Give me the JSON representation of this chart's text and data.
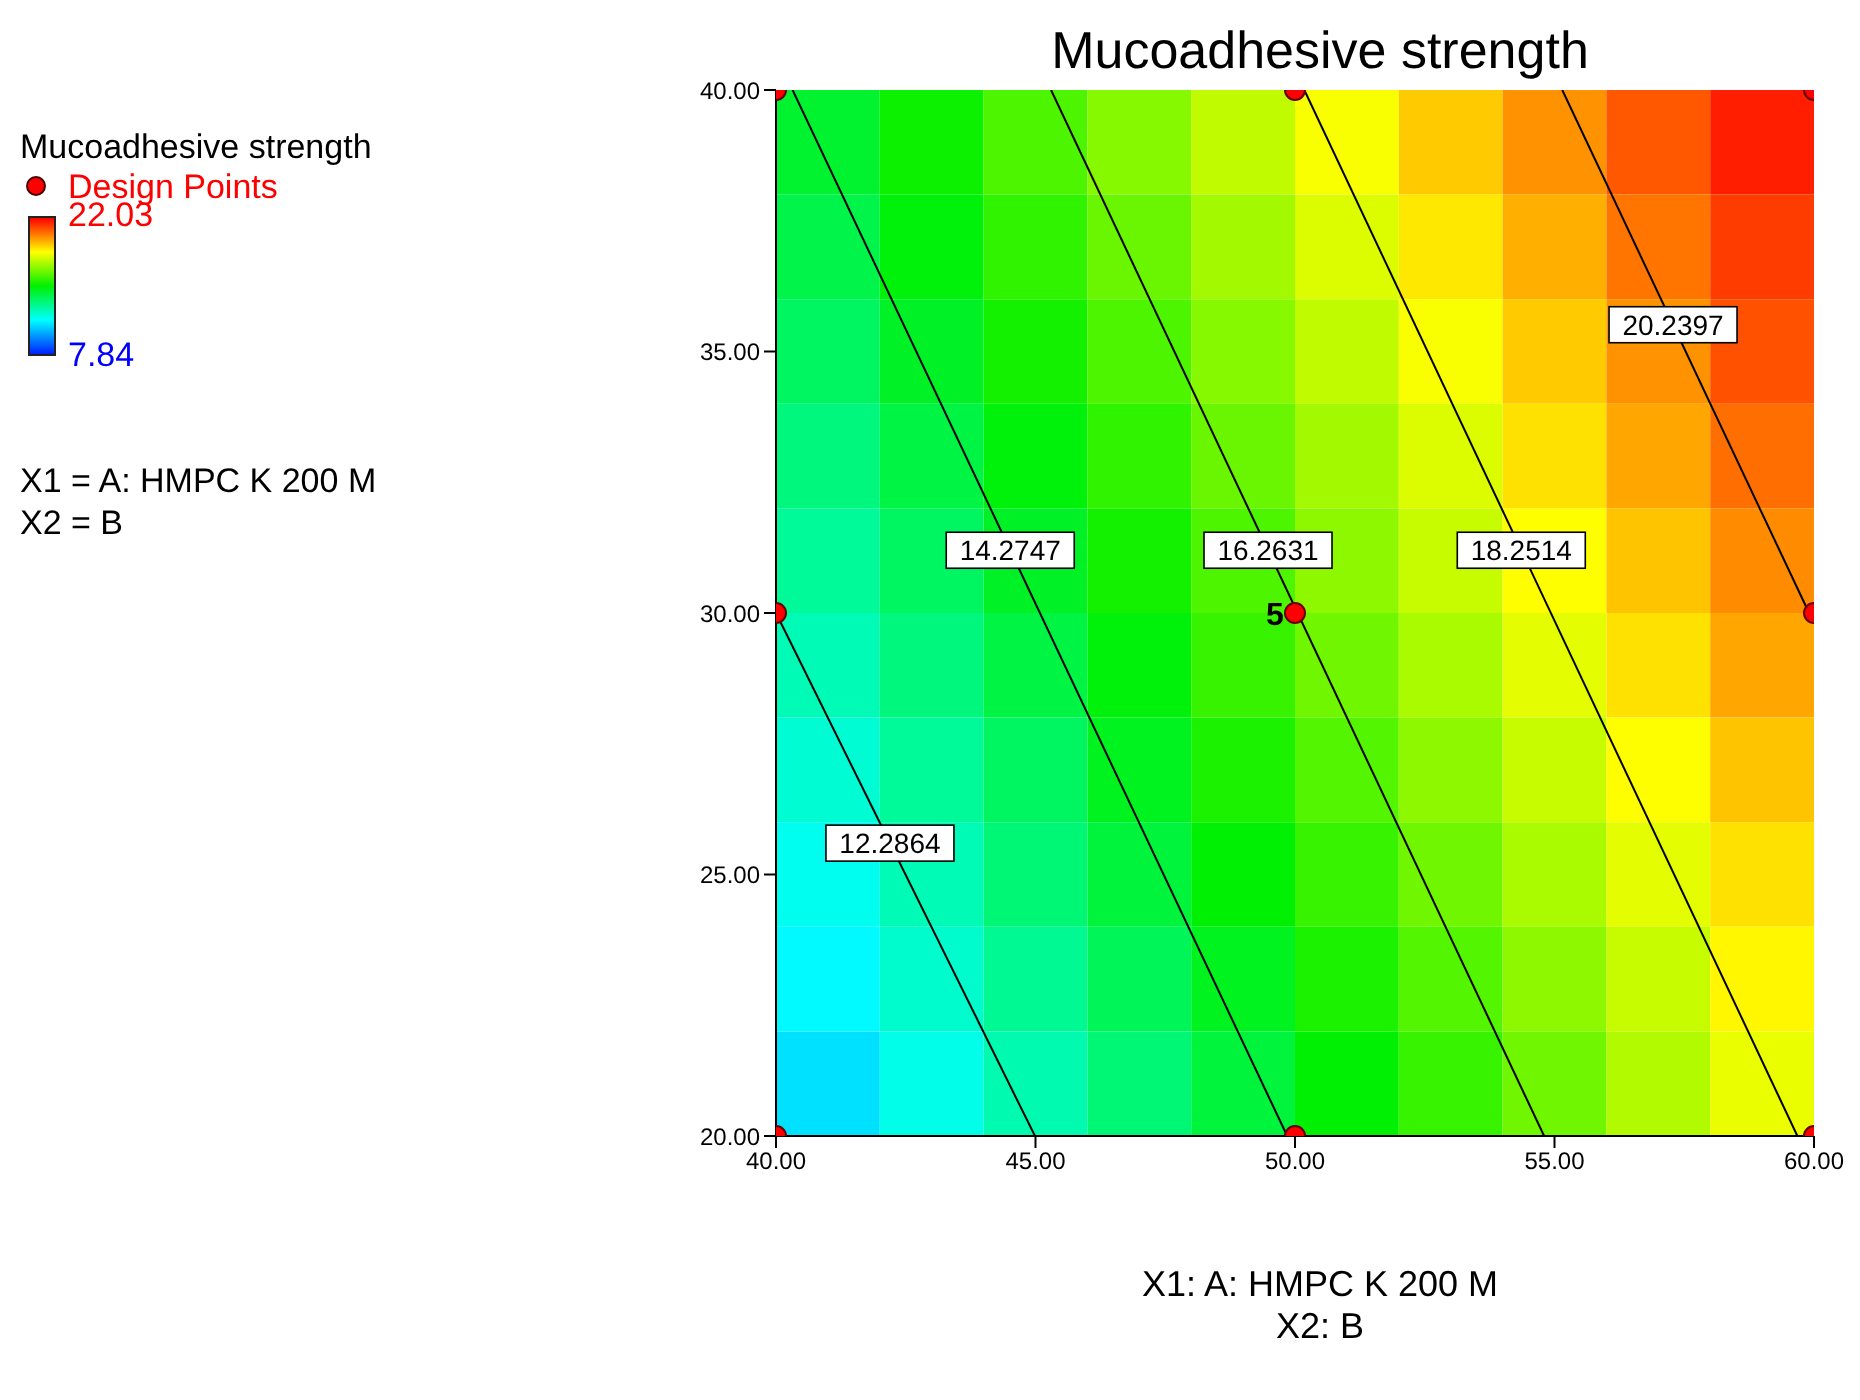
{
  "chart_data": {
    "type": "heatmap",
    "title": "Mucoadhesive strength",
    "xlabel": "X1: A: HMPC K 200 M",
    "legend_title": "Mucoadhesive strength",
    "legend": "left",
    "xlim": [
      40,
      60
    ],
    "ylim": [
      20,
      40
    ],
    "xticks": [
      {
        "value": 40,
        "label": "40.00"
      },
      {
        "value": 45,
        "label": "45.00"
      },
      {
        "value": 50,
        "label": "50.00"
      },
      {
        "value": 55,
        "label": "55.00"
      },
      {
        "value": 60,
        "label": "60.00"
      }
    ],
    "yticks": [
      {
        "value": 20,
        "label": "20.00"
      },
      {
        "value": 25,
        "label": "25.00"
      },
      {
        "value": 30,
        "label": "30.00"
      },
      {
        "value": 35,
        "label": "35.00"
      },
      {
        "value": 40,
        "label": "40.00"
      }
    ],
    "clim": [
      7.84,
      22.03
    ],
    "cticks": [
      7.84,
      22.03
    ],
    "cells": [
      [
        14.3,
        15.1,
        16.0,
        16.8,
        17.6,
        18.4,
        19.2,
        20.0,
        20.8,
        21.6
      ],
      [
        13.9,
        14.8,
        15.6,
        16.4,
        17.2,
        18.0,
        18.8,
        19.6,
        20.4,
        21.2
      ],
      [
        13.6,
        14.4,
        15.2,
        16.0,
        16.8,
        17.6,
        18.4,
        19.2,
        20.0,
        20.9
      ],
      [
        13.2,
        14.0,
        14.8,
        15.6,
        16.4,
        17.2,
        18.0,
        18.9,
        19.7,
        20.5
      ],
      [
        12.8,
        13.6,
        14.4,
        15.2,
        16.0,
        16.9,
        17.7,
        18.5,
        19.3,
        20.1
      ],
      [
        12.4,
        13.2,
        14.0,
        14.8,
        15.7,
        16.5,
        17.3,
        18.1,
        18.9,
        19.7
      ],
      [
        12.0,
        12.8,
        13.6,
        14.5,
        15.3,
        16.1,
        16.9,
        17.7,
        18.5,
        19.3
      ],
      [
        11.6,
        12.4,
        13.3,
        14.1,
        14.9,
        15.7,
        16.5,
        17.3,
        18.1,
        18.9
      ],
      [
        11.3,
        12.1,
        12.9,
        13.7,
        14.5,
        15.3,
        16.1,
        16.9,
        17.7,
        18.6
      ],
      [
        10.9,
        11.7,
        12.5,
        13.3,
        14.1,
        14.9,
        15.7,
        16.5,
        17.4,
        18.2
      ]
    ],
    "series": [
      {
        "type": "line",
        "name": "12.2864",
        "color": "#000000",
        "x": [
          40,
          44.99
        ],
        "values": [
          30.0,
          20
        ]
      },
      {
        "type": "line",
        "name": "14.2747",
        "color": "#000000",
        "x": [
          40.32,
          49.85
        ],
        "values": [
          40,
          20
        ]
      },
      {
        "type": "line",
        "name": "16.2631",
        "color": "#000000",
        "x": [
          45.3,
          54.8
        ],
        "values": [
          40,
          20
        ]
      },
      {
        "type": "line",
        "name": "18.2514",
        "color": "#000000",
        "x": [
          50.18,
          59.68
        ],
        "values": [
          40,
          20
        ]
      },
      {
        "type": "line",
        "name": "20.2397",
        "color": "#000000",
        "x": [
          55.15,
          60
        ],
        "values": [
          40,
          29.8
        ]
      },
      {
        "type": "scatter",
        "name": "Design Points",
        "color": "#ff0000",
        "marker": "circle",
        "x": [
          40,
          50,
          60,
          40,
          50,
          60,
          40,
          50,
          60
        ],
        "values": [
          20,
          20,
          20,
          30,
          30,
          30,
          40,
          40,
          40
        ]
      }
    ],
    "annotations": [
      "X1 = A: HMPC K 200 M",
      "X2 = B",
      "X2: B",
      {
        "text": "5",
        "x": 50,
        "y": 30
      }
    ]
  }
}
